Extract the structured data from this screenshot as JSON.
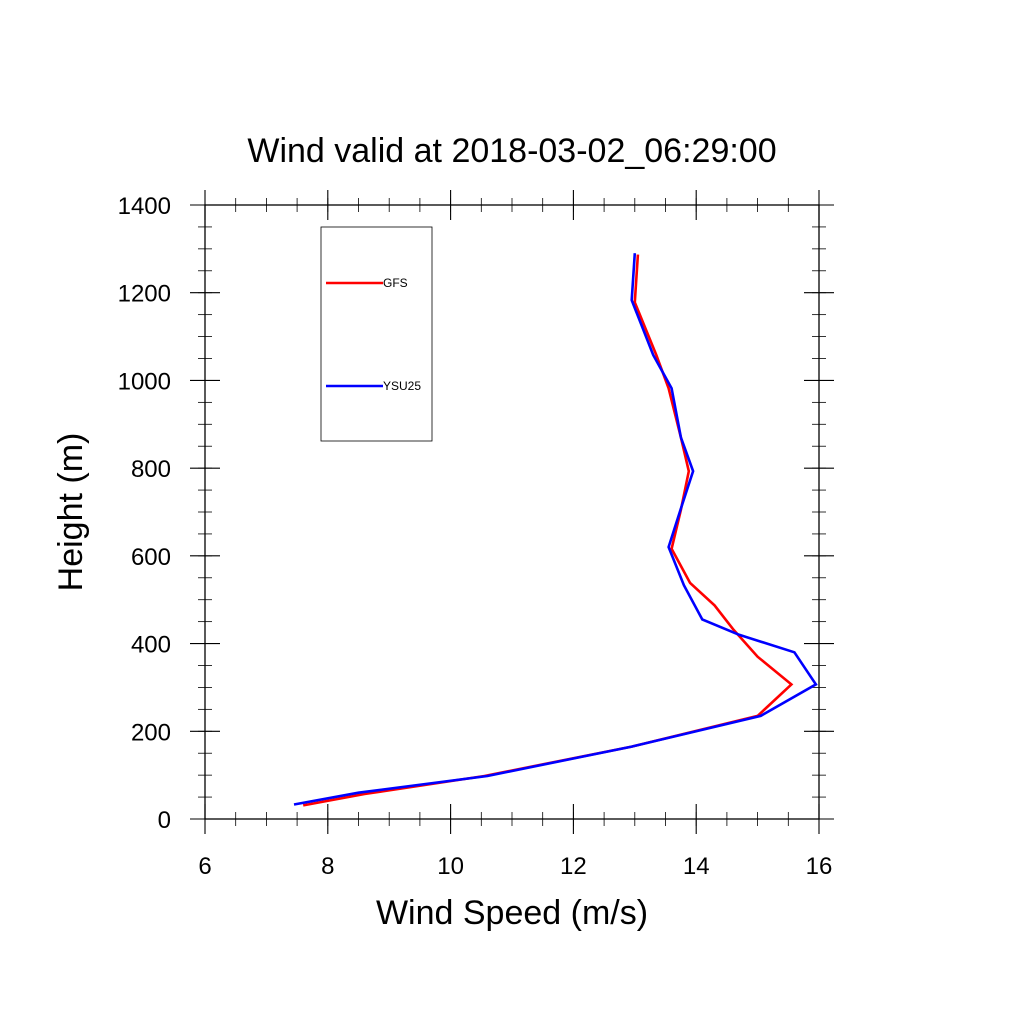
{
  "chart_data": {
    "type": "line",
    "title": "Wind valid at 2018-03-02_06:29:00",
    "xlabel": "Wind Speed (m/s)",
    "ylabel": "Height (m)",
    "xlim": [
      6,
      16
    ],
    "ylim": [
      0,
      1400
    ],
    "x_ticks": [
      6,
      8,
      10,
      12,
      14,
      16
    ],
    "y_ticks": [
      0,
      200,
      400,
      600,
      800,
      1000,
      1200,
      1400
    ],
    "x_minor_step": 0.5,
    "y_minor_step": 50,
    "grid": false,
    "legend_position": "top-left",
    "series": [
      {
        "name": "GFS",
        "color": "#ff0000",
        "points": [
          [
            7.6,
            31
          ],
          [
            8.6,
            57
          ],
          [
            10.55,
            98
          ],
          [
            12.95,
            165
          ],
          [
            15.0,
            235
          ],
          [
            15.55,
            307
          ],
          [
            15.0,
            370
          ],
          [
            14.6,
            433
          ],
          [
            14.3,
            487
          ],
          [
            13.9,
            538
          ],
          [
            13.6,
            616
          ],
          [
            13.75,
            705
          ],
          [
            13.88,
            793
          ],
          [
            13.75,
            870
          ],
          [
            13.55,
            982
          ],
          [
            13.35,
            1058
          ],
          [
            13.0,
            1178
          ],
          [
            13.05,
            1287
          ]
        ]
      },
      {
        "name": "YSU25",
        "color": "#0000ff",
        "points": [
          [
            7.45,
            33
          ],
          [
            8.5,
            60
          ],
          [
            10.6,
            98
          ],
          [
            12.95,
            165
          ],
          [
            15.05,
            235
          ],
          [
            15.95,
            307
          ],
          [
            15.6,
            380
          ],
          [
            14.7,
            420
          ],
          [
            14.1,
            455
          ],
          [
            13.8,
            533
          ],
          [
            13.55,
            620
          ],
          [
            13.75,
            708
          ],
          [
            13.95,
            793
          ],
          [
            13.75,
            870
          ],
          [
            13.6,
            982
          ],
          [
            13.3,
            1058
          ],
          [
            12.95,
            1183
          ],
          [
            13.0,
            1290
          ]
        ]
      }
    ]
  }
}
